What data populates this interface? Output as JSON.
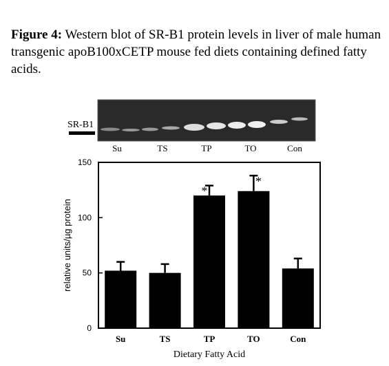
{
  "figure_label": "Figure 4:",
  "caption": "Western blot of SR-B1 protein levels in liver of male human transgenic apoB100xCETP mouse fed diets containing defined fatty acids.",
  "blot": {
    "marker": "SR-B1",
    "lanes": [
      "Su",
      "TS",
      "TP",
      "TO",
      "Con"
    ]
  },
  "chart_data": {
    "type": "bar",
    "categories": [
      "Su",
      "TS",
      "TP",
      "TO",
      "Con"
    ],
    "values": [
      52,
      50,
      120,
      124,
      54
    ],
    "errors": [
      8,
      8,
      9,
      14,
      9
    ],
    "color": "#000000",
    "ylim": [
      0,
      150
    ],
    "yticks": [
      0,
      50,
      100,
      150
    ],
    "y_label": "relative units/µg protein",
    "x_label": "Dietary Fatty Acid",
    "annotations": [
      {
        "text": "*",
        "category": "TP"
      },
      {
        "text": "*",
        "category": "TO"
      }
    ]
  }
}
